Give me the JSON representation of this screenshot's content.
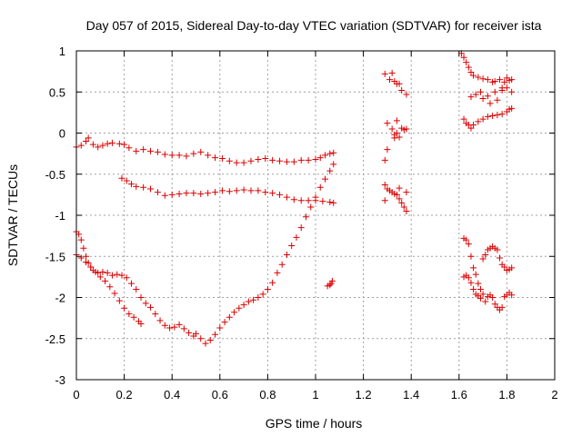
{
  "chart_data": {
    "type": "scatter",
    "title": "Day 057 of 2015, Sidereal Day-to-day VTEC variation (SDTVAR) for receiver ista",
    "xlabel": "GPS time / hours",
    "ylabel": "SDTVAR / TECUs",
    "xlim": [
      0,
      2
    ],
    "ylim": [
      -3,
      1
    ],
    "xticks": [
      "0",
      "0.2",
      "0.4",
      "0.6",
      "0.8",
      "1",
      "1.2",
      "1.4",
      "1.6",
      "1.8",
      "2"
    ],
    "yticks": [
      "-3",
      "-2.5",
      "-2",
      "-1.5",
      "-1",
      "-0.5",
      "0",
      "0.5",
      "1"
    ],
    "grid": true,
    "marker": "+",
    "color": "#dd0000",
    "series": [
      {
        "points": [
          [
            0.0,
            -0.17
          ],
          [
            0.02,
            -0.15
          ],
          [
            0.04,
            -0.1
          ],
          [
            0.05,
            -0.06
          ],
          [
            0.07,
            -0.14
          ],
          [
            0.09,
            -0.17
          ],
          [
            0.11,
            -0.15
          ],
          [
            0.13,
            -0.13
          ],
          [
            0.15,
            -0.12
          ],
          [
            0.18,
            -0.13
          ],
          [
            0.2,
            -0.14
          ],
          [
            0.22,
            -0.18
          ],
          [
            0.25,
            -0.22
          ],
          [
            0.28,
            -0.2
          ],
          [
            0.31,
            -0.22
          ],
          [
            0.34,
            -0.23
          ],
          [
            0.37,
            -0.26
          ],
          [
            0.4,
            -0.27
          ],
          [
            0.43,
            -0.27
          ],
          [
            0.46,
            -0.28
          ],
          [
            0.49,
            -0.25
          ],
          [
            0.52,
            -0.23
          ],
          [
            0.55,
            -0.27
          ],
          [
            0.58,
            -0.3
          ],
          [
            0.61,
            -0.31
          ],
          [
            0.64,
            -0.34
          ],
          [
            0.67,
            -0.36
          ],
          [
            0.7,
            -0.36
          ],
          [
            0.73,
            -0.34
          ],
          [
            0.76,
            -0.32
          ],
          [
            0.79,
            -0.31
          ],
          [
            0.82,
            -0.33
          ],
          [
            0.85,
            -0.34
          ],
          [
            0.88,
            -0.35
          ],
          [
            0.91,
            -0.35
          ],
          [
            0.94,
            -0.33
          ],
          [
            0.97,
            -0.33
          ],
          [
            1.0,
            -0.32
          ],
          [
            1.02,
            -0.3
          ],
          [
            1.04,
            -0.27
          ],
          [
            1.06,
            -0.25
          ],
          [
            1.075,
            -0.24
          ]
        ]
      },
      {
        "points": [
          [
            0.19,
            -0.55
          ],
          [
            0.21,
            -0.58
          ],
          [
            0.23,
            -0.62
          ],
          [
            0.25,
            -0.65
          ],
          [
            0.28,
            -0.66
          ],
          [
            0.31,
            -0.68
          ],
          [
            0.34,
            -0.72
          ],
          [
            0.37,
            -0.76
          ],
          [
            0.4,
            -0.75
          ],
          [
            0.43,
            -0.74
          ],
          [
            0.46,
            -0.73
          ],
          [
            0.49,
            -0.73
          ],
          [
            0.52,
            -0.74
          ],
          [
            0.55,
            -0.73
          ],
          [
            0.58,
            -0.72
          ],
          [
            0.61,
            -0.7
          ],
          [
            0.64,
            -0.71
          ],
          [
            0.67,
            -0.7
          ],
          [
            0.7,
            -0.69
          ],
          [
            0.73,
            -0.7
          ],
          [
            0.76,
            -0.7
          ],
          [
            0.79,
            -0.72
          ],
          [
            0.82,
            -0.73
          ],
          [
            0.85,
            -0.75
          ],
          [
            0.88,
            -0.78
          ],
          [
            0.91,
            -0.81
          ],
          [
            0.94,
            -0.82
          ],
          [
            0.97,
            -0.82
          ],
          [
            1.0,
            -0.82
          ],
          [
            1.03,
            -0.83
          ],
          [
            1.06,
            -0.84
          ],
          [
            1.075,
            -0.85
          ]
        ]
      },
      {
        "points": [
          [
            0.0,
            -1.2
          ],
          [
            0.01,
            -1.23
          ],
          [
            0.02,
            -1.3
          ],
          [
            0.03,
            -1.4
          ],
          [
            0.04,
            -1.5
          ],
          [
            0.05,
            -1.58
          ],
          [
            0.06,
            -1.63
          ],
          [
            0.07,
            -1.67
          ],
          [
            0.09,
            -1.7
          ],
          [
            0.11,
            -1.69
          ],
          [
            0.13,
            -1.7
          ],
          [
            0.15,
            -1.73
          ],
          [
            0.17,
            -1.72
          ],
          [
            0.19,
            -1.73
          ],
          [
            0.21,
            -1.76
          ],
          [
            0.23,
            -1.83
          ],
          [
            0.25,
            -1.9
          ],
          [
            0.27,
            -2.0
          ],
          [
            0.29,
            -2.07
          ],
          [
            0.31,
            -2.12
          ],
          [
            0.33,
            -2.2
          ],
          [
            0.35,
            -2.28
          ],
          [
            0.37,
            -2.34
          ],
          [
            0.39,
            -2.37
          ],
          [
            0.41,
            -2.36
          ],
          [
            0.43,
            -2.33
          ],
          [
            0.45,
            -2.38
          ],
          [
            0.47,
            -2.43
          ],
          [
            0.49,
            -2.47
          ],
          [
            0.5,
            -2.44
          ],
          [
            0.52,
            -2.5
          ],
          [
            0.54,
            -2.56
          ],
          [
            0.56,
            -2.52
          ],
          [
            0.58,
            -2.45
          ],
          [
            0.6,
            -2.37
          ],
          [
            0.62,
            -2.3
          ],
          [
            0.64,
            -2.24
          ],
          [
            0.66,
            -2.18
          ],
          [
            0.68,
            -2.13
          ],
          [
            0.7,
            -2.09
          ],
          [
            0.72,
            -2.05
          ],
          [
            0.74,
            -2.03
          ],
          [
            0.76,
            -2.0
          ],
          [
            0.78,
            -1.96
          ],
          [
            0.8,
            -1.9
          ],
          [
            0.82,
            -1.82
          ],
          [
            0.84,
            -1.7
          ],
          [
            0.86,
            -1.6
          ],
          [
            0.88,
            -1.48
          ],
          [
            0.9,
            -1.37
          ],
          [
            0.92,
            -1.27
          ],
          [
            0.94,
            -1.15
          ],
          [
            0.96,
            -1.02
          ],
          [
            0.98,
            -0.9
          ],
          [
            1.0,
            -0.78
          ],
          [
            1.02,
            -0.66
          ],
          [
            1.04,
            -0.56
          ],
          [
            1.06,
            -0.46
          ],
          [
            1.075,
            -0.38
          ],
          [
            1.07,
            -1.8
          ],
          [
            1.06,
            -1.85
          ],
          [
            1.05,
            -1.86
          ],
          [
            1.065,
            -1.83
          ]
        ]
      },
      {
        "points": [
          [
            0.0,
            -1.48
          ],
          [
            0.02,
            -1.52
          ],
          [
            0.04,
            -1.57
          ],
          [
            0.06,
            -1.63
          ],
          [
            0.08,
            -1.69
          ],
          [
            0.1,
            -1.75
          ],
          [
            0.12,
            -1.8
          ],
          [
            0.14,
            -1.87
          ],
          [
            0.16,
            -1.95
          ],
          [
            0.18,
            -2.04
          ],
          [
            0.2,
            -2.13
          ],
          [
            0.22,
            -2.2
          ],
          [
            0.24,
            -2.24
          ],
          [
            0.26,
            -2.29
          ],
          [
            0.27,
            -2.32
          ]
        ]
      },
      {
        "points": [
          [
            1.29,
            0.72
          ],
          [
            1.31,
            0.65
          ],
          [
            1.33,
            0.63
          ],
          [
            1.35,
            0.6
          ],
          [
            1.36,
            0.52
          ],
          [
            1.38,
            0.47
          ],
          [
            1.32,
            0.73
          ],
          [
            1.34,
            0.6
          ],
          [
            1.29,
            -0.33
          ],
          [
            1.3,
            -0.2
          ],
          [
            1.3,
            0.12
          ],
          [
            1.32,
            0.05
          ],
          [
            1.33,
            -0.02
          ],
          [
            1.34,
            0.0
          ],
          [
            1.35,
            -0.05
          ],
          [
            1.36,
            0.06
          ],
          [
            1.37,
            0.04
          ],
          [
            1.38,
            0.05
          ],
          [
            1.34,
            0.15
          ],
          [
            1.33,
            -0.06
          ],
          [
            1.29,
            -0.63
          ],
          [
            1.3,
            -0.68
          ],
          [
            1.31,
            -0.7
          ],
          [
            1.32,
            -0.72
          ],
          [
            1.33,
            -0.74
          ],
          [
            1.34,
            -0.75
          ],
          [
            1.35,
            -0.8
          ],
          [
            1.36,
            -0.85
          ],
          [
            1.37,
            -0.9
          ],
          [
            1.38,
            -0.95
          ],
          [
            1.29,
            -0.82
          ],
          [
            1.38,
            -0.72
          ],
          [
            1.35,
            -0.67
          ]
        ]
      },
      {
        "points": [
          [
            1.61,
            0.97
          ],
          [
            1.62,
            0.92
          ],
          [
            1.63,
            0.86
          ],
          [
            1.64,
            0.8
          ],
          [
            1.65,
            0.74
          ],
          [
            1.66,
            0.7
          ],
          [
            1.68,
            0.68
          ],
          [
            1.7,
            0.66
          ],
          [
            1.72,
            0.65
          ],
          [
            1.74,
            0.62
          ],
          [
            1.75,
            0.63
          ],
          [
            1.77,
            0.65
          ],
          [
            1.78,
            0.55
          ],
          [
            1.79,
            0.62
          ],
          [
            1.8,
            0.67
          ],
          [
            1.81,
            0.64
          ],
          [
            1.82,
            0.65
          ],
          [
            1.65,
            0.44
          ],
          [
            1.67,
            0.47
          ],
          [
            1.69,
            0.5
          ],
          [
            1.7,
            0.42
          ],
          [
            1.72,
            0.45
          ],
          [
            1.73,
            0.36
          ],
          [
            1.75,
            0.5
          ],
          [
            1.76,
            0.4
          ],
          [
            1.78,
            0.52
          ],
          [
            1.8,
            0.55
          ],
          [
            1.82,
            0.5
          ],
          [
            1.62,
            0.17
          ],
          [
            1.63,
            0.12
          ],
          [
            1.64,
            0.1
          ],
          [
            1.65,
            0.06
          ],
          [
            1.66,
            0.1
          ],
          [
            1.68,
            0.14
          ],
          [
            1.7,
            0.17
          ],
          [
            1.72,
            0.2
          ],
          [
            1.74,
            0.21
          ],
          [
            1.76,
            0.22
          ],
          [
            1.78,
            0.23
          ],
          [
            1.8,
            0.26
          ],
          [
            1.81,
            0.29
          ],
          [
            1.82,
            0.3
          ]
        ]
      },
      {
        "points": [
          [
            1.62,
            -1.28
          ],
          [
            1.63,
            -1.3
          ],
          [
            1.64,
            -1.35
          ],
          [
            1.65,
            -1.5
          ],
          [
            1.66,
            -1.64
          ],
          [
            1.67,
            -1.72
          ],
          [
            1.68,
            -1.83
          ],
          [
            1.69,
            -1.9
          ],
          [
            1.7,
            -1.96
          ],
          [
            1.71,
            -2.05
          ],
          [
            1.72,
            -1.99
          ],
          [
            1.73,
            -1.97
          ],
          [
            1.74,
            -2.0
          ],
          [
            1.75,
            -2.08
          ],
          [
            1.76,
            -2.12
          ],
          [
            1.77,
            -2.15
          ],
          [
            1.78,
            -2.12
          ],
          [
            1.79,
            -1.99
          ],
          [
            1.8,
            -1.97
          ],
          [
            1.81,
            -1.94
          ],
          [
            1.82,
            -1.97
          ],
          [
            1.62,
            -1.75
          ],
          [
            1.63,
            -1.73
          ],
          [
            1.64,
            -1.76
          ],
          [
            1.65,
            -1.82
          ],
          [
            1.66,
            -1.9
          ],
          [
            1.67,
            -1.96
          ],
          [
            1.68,
            -1.98
          ],
          [
            1.69,
            -2.01
          ],
          [
            1.7,
            -1.53
          ],
          [
            1.71,
            -1.48
          ],
          [
            1.72,
            -1.42
          ],
          [
            1.73,
            -1.4
          ],
          [
            1.74,
            -1.38
          ],
          [
            1.75,
            -1.4
          ],
          [
            1.76,
            -1.42
          ],
          [
            1.77,
            -1.52
          ],
          [
            1.78,
            -1.6
          ],
          [
            1.79,
            -1.63
          ],
          [
            1.8,
            -1.67
          ],
          [
            1.81,
            -1.66
          ],
          [
            1.82,
            -1.64
          ]
        ]
      }
    ]
  }
}
